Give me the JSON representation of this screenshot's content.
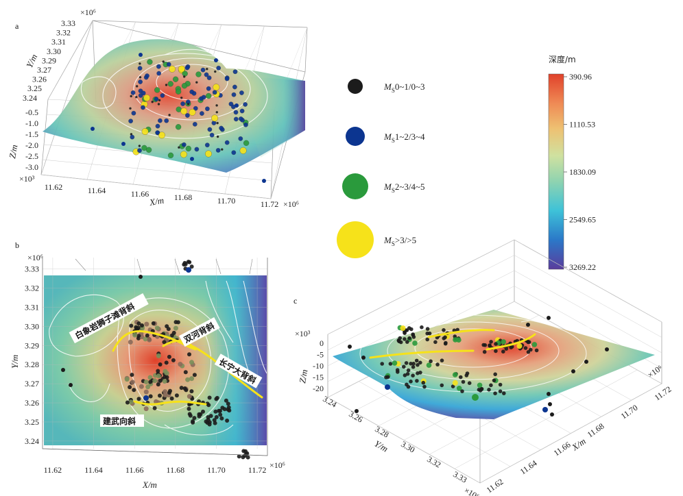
{
  "chart_data": [
    {
      "panel": "a",
      "type": "scatter",
      "view": "3d-perspective",
      "xlabel": "X/m",
      "ylabel": "Y/m",
      "zlabel": "Z/m",
      "x_exponent": "×10⁶",
      "y_exponent": "×10⁶",
      "z_exponent": "×10³",
      "x_ticks": [
        "11.62",
        "11.64",
        "11.66",
        "11.68",
        "11.70",
        "11.72"
      ],
      "y_ticks": [
        "3.33",
        "3.32",
        "3.31",
        "3.30",
        "3.29",
        "3.27",
        "3.26",
        "3.25",
        "3.24"
      ],
      "z_ticks": [
        "-0.5",
        "-1.0",
        "-1.5",
        "-2.0",
        "-2.5",
        "-3.0"
      ]
    },
    {
      "panel": "b",
      "type": "scatter",
      "view": "map",
      "xlabel": "X/m",
      "ylabel": "Y/m",
      "x_exponent": "×10⁶",
      "y_exponent": "×10⁶",
      "x_ticks": [
        "11.62",
        "11.64",
        "11.66",
        "11.68",
        "11.70",
        "11.72"
      ],
      "y_ticks": [
        "3.33",
        "3.32",
        "3.31",
        "3.30",
        "3.29",
        "3.28",
        "3.27",
        "3.26",
        "3.25",
        "3.24"
      ],
      "x_range": [
        11.615,
        11.725
      ],
      "y_range": [
        3.236,
        3.336
      ],
      "annotations": [
        "白象岩狮子滩背斜",
        "双河背斜",
        "长宁大背斜",
        "建武向斜"
      ]
    },
    {
      "panel": "c",
      "type": "scatter",
      "view": "3d-perspective",
      "xlabel": "X/m",
      "ylabel": "Y/m",
      "zlabel": "Z/m",
      "x_exponent": "×10⁶",
      "y_exponent": "×10⁶",
      "z_exponent": "×10³",
      "x_ticks": [
        "11.62",
        "11.64",
        "11.66",
        "11.68",
        "11.70",
        "11.72"
      ],
      "y_ticks": [
        "3.24",
        "3.26",
        "3.28",
        "3.30",
        "3.32",
        "3.33"
      ],
      "z_ticks": [
        "0",
        "-5",
        "-10",
        "-15",
        "-20"
      ]
    }
  ],
  "legend": {
    "items": [
      {
        "prefix": "M",
        "sub": "S",
        "text": "0~1/0~3",
        "color": "#1c1c1c"
      },
      {
        "prefix": "M",
        "sub": "S",
        "text": "1~2/3~4",
        "color": "#0c3590"
      },
      {
        "prefix": "M",
        "sub": "S",
        "text": "2~3/4~5",
        "color": "#2a9a3c"
      },
      {
        "prefix": "M",
        "sub": "S",
        "text": ">3/>5",
        "color": "#f6e21a"
      }
    ]
  },
  "colorbar": {
    "title": "深度/m",
    "ticks": [
      "390.96",
      "1110.53",
      "1830.09",
      "2549.65",
      "3269.22"
    ],
    "colors": [
      "#e0412a",
      "#efa85a",
      "#e6d88a",
      "#9ed2a0",
      "#4fbfc6",
      "#2a8fd0",
      "#4a4fb0",
      "#5a3c9c"
    ]
  },
  "panel_labels": {
    "a": "a",
    "b": "b",
    "c": "c"
  }
}
